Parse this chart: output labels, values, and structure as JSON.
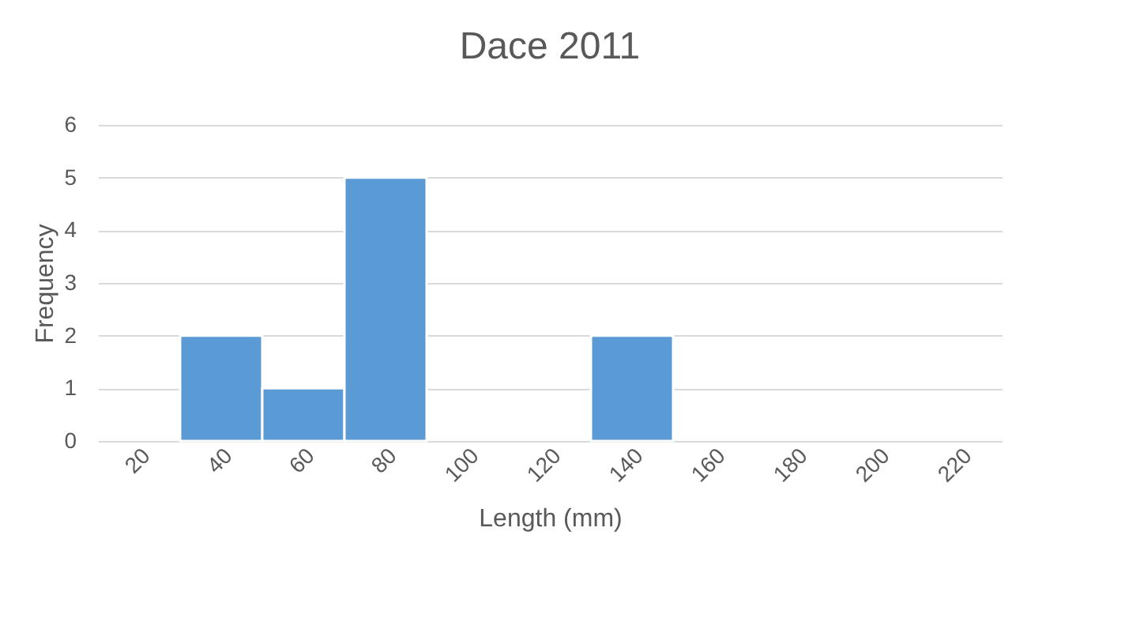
{
  "chart_data": {
    "type": "bar",
    "title": "Dace 2011",
    "xlabel": "Length (mm)",
    "ylabel": "Frequency",
    "categories": [
      "20",
      "40",
      "60",
      "80",
      "100",
      "120",
      "140",
      "160",
      "180",
      "200",
      "220"
    ],
    "values": [
      0,
      2,
      1,
      5,
      0,
      0,
      2,
      0,
      0,
      0,
      0
    ],
    "color": "#5b9bd5",
    "ylim": [
      0,
      6
    ],
    "yticks": [
      0,
      1,
      2,
      3,
      4,
      5,
      6
    ],
    "grid": "y"
  }
}
